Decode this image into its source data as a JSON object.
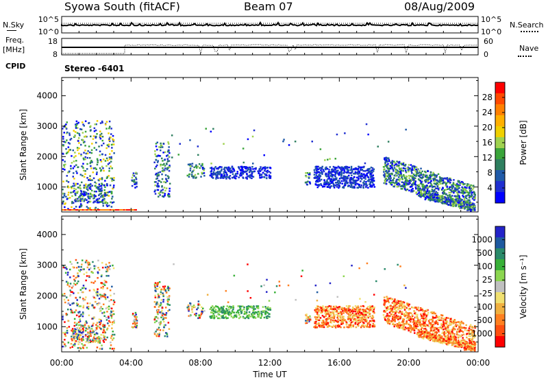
{
  "header": {
    "station": "Syowa South (fitACF)",
    "beam": "Beam 07",
    "date": "08/Aug/2009"
  },
  "left_labels": {
    "nsky": "N.Sky",
    "freq": "Freq.",
    "freq_unit": "[MHz]",
    "cpid": "CPID"
  },
  "right_labels": {
    "nsearch": "N.Search",
    "nave": "Nave"
  },
  "stereo_label": "Stereo -6401",
  "chart_data": [
    {
      "type": "line",
      "name": "noise-panel",
      "ytick_labels_left": [
        "10^5",
        "10^0"
      ],
      "ytick_labels_right": [
        "10^5",
        "10^0"
      ]
    },
    {
      "type": "line",
      "name": "freq-nave-panel",
      "ytick_labels_left": [
        "18",
        "8"
      ],
      "ytick_labels_right": [
        "60",
        "0"
      ],
      "freq_MHz": 13,
      "nave_range": [
        0,
        60
      ]
    },
    {
      "type": "heatmap",
      "name": "power",
      "ylabel": "Slant Range [km]",
      "yticks": [
        "4000",
        "3000",
        "2000",
        "1000"
      ],
      "ylim": [
        180,
        4600
      ],
      "colorbar": {
        "label": "Power [dB]",
        "ticks": [
          "28",
          "24",
          "20",
          "16",
          "12",
          "8",
          "4"
        ],
        "colors": [
          "#ff0000",
          "#ff4a00",
          "#ff8000",
          "#ffb000",
          "#f0d000",
          "#9fd24f",
          "#3aa43a",
          "#2f7f60",
          "#205aa8",
          "#1f2fd0",
          "#0000ff"
        ]
      }
    },
    {
      "type": "heatmap",
      "name": "velocity",
      "ylabel": "Slant Range [km]",
      "yticks": [
        "4000",
        "3000",
        "2000",
        "1000"
      ],
      "ylim": [
        180,
        4600
      ],
      "colorbar": {
        "label": "Velocity [m s⁻¹]",
        "ticks": [
          "1000",
          "500",
          "100",
          "25",
          "-25",
          "-100",
          "-500",
          "-1000"
        ],
        "colors": [
          "#2323c8",
          "#1e5aa0",
          "#2a8a6a",
          "#38b038",
          "#8cd650",
          "#c0c0c0",
          "#f0e070",
          "#f0b040",
          "#ff8020",
          "#ff5010",
          "#ff0000"
        ]
      }
    }
  ],
  "x_axis": {
    "ticks": [
      "00:00",
      "04:00",
      "08:00",
      "12:00",
      "16:00",
      "20:00",
      "00:00"
    ],
    "label": "Time UT"
  }
}
